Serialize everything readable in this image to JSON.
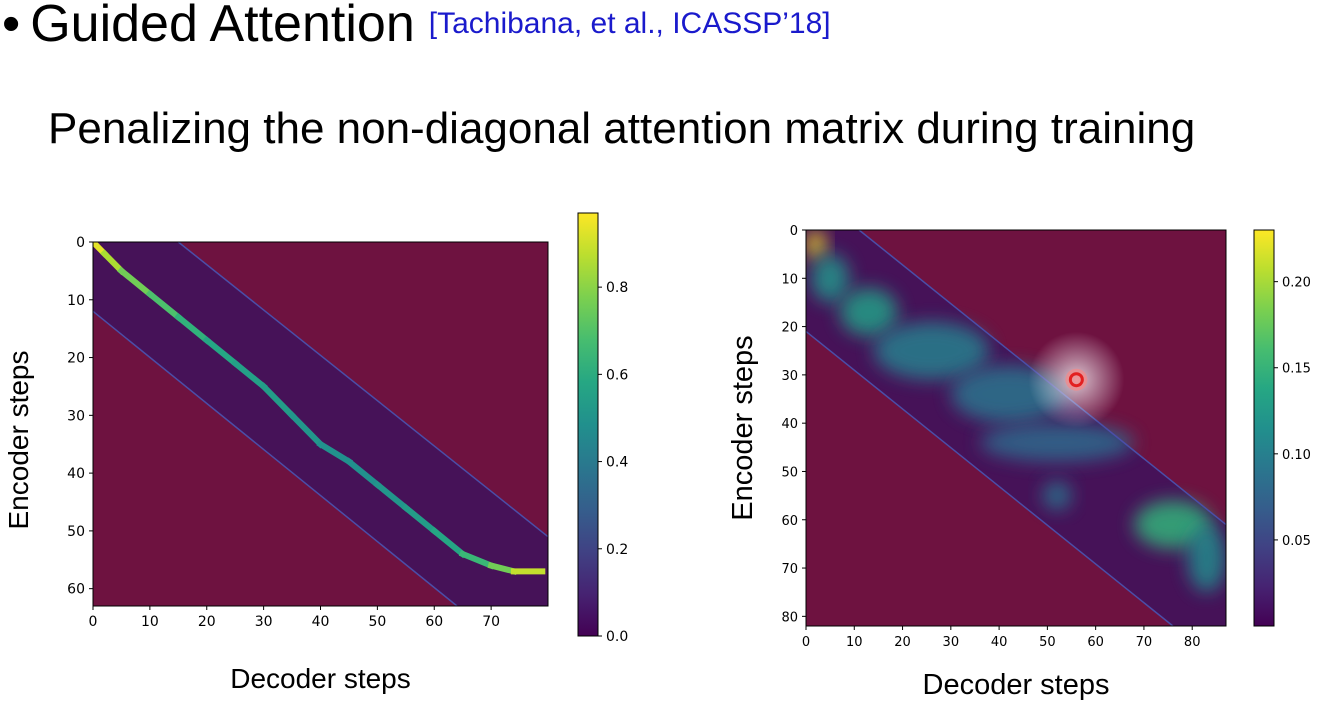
{
  "slide": {
    "bullet": "•",
    "title": "Guided Attention",
    "citation": "[Tachibana, et al., ICASSP’18]",
    "subtitle": "Penalizing the non-diagonal attention matrix during training"
  },
  "colors": {
    "penalty_region": "#6e1240",
    "band_background": "#461258",
    "citation": "#1a1acc",
    "marker": "#e32020"
  },
  "chart_data": [
    {
      "type": "heatmap",
      "title": "",
      "xlabel": "Decoder steps",
      "ylabel": "Encoder steps",
      "xlim": [
        0,
        80
      ],
      "ylim": [
        63,
        0
      ],
      "x_ticks": [
        "0",
        "10",
        "20",
        "30",
        "40",
        "50",
        "60",
        "70"
      ],
      "y_ticks": [
        "0",
        "10",
        "20",
        "30",
        "40",
        "50",
        "60"
      ],
      "colorbar": {
        "min": 0.0,
        "max": 0.97,
        "ticks": [
          "0.0",
          "0.2",
          "0.4",
          "0.6",
          "0.8"
        ],
        "colormap": "viridis"
      },
      "guided_band": {
        "upper": [
          [
            15,
            0
          ],
          [
            80,
            51
          ]
        ],
        "lower": [
          [
            0,
            12
          ],
          [
            64,
            63
          ]
        ]
      },
      "alignment_path": [
        [
          0,
          0
        ],
        [
          2,
          2
        ],
        [
          5,
          5
        ],
        [
          10,
          9
        ],
        [
          15,
          13
        ],
        [
          20,
          17
        ],
        [
          25,
          21
        ],
        [
          30,
          25
        ],
        [
          35,
          30
        ],
        [
          40,
          35
        ],
        [
          45,
          38
        ],
        [
          50,
          42
        ],
        [
          55,
          46
        ],
        [
          60,
          50
        ],
        [
          65,
          54
        ],
        [
          70,
          56
        ],
        [
          74,
          57
        ],
        [
          79,
          57
        ]
      ],
      "path_intensity": [
        0.97,
        0.9,
        0.8,
        0.72,
        0.66,
        0.6,
        0.55,
        0.55,
        0.52,
        0.5,
        0.48,
        0.5,
        0.52,
        0.55,
        0.6,
        0.7,
        0.82,
        0.95
      ]
    },
    {
      "type": "heatmap",
      "title": "",
      "xlabel": "Decoder steps",
      "ylabel": "Encoder steps",
      "xlim": [
        0,
        87
      ],
      "ylim": [
        82,
        0
      ],
      "x_ticks": [
        "0",
        "10",
        "20",
        "30",
        "40",
        "50",
        "60",
        "70",
        "80"
      ],
      "y_ticks": [
        "0",
        "10",
        "20",
        "30",
        "40",
        "50",
        "60",
        "70",
        "80"
      ],
      "colorbar": {
        "min": 0.0,
        "max": 0.23,
        "ticks": [
          "0.05",
          "0.10",
          "0.15",
          "0.20"
        ],
        "colormap": "viridis"
      },
      "guided_band": {
        "upper": [
          [
            11,
            0
          ],
          [
            87,
            61
          ]
        ],
        "lower": [
          [
            0,
            21
          ],
          [
            76,
            82
          ]
        ]
      },
      "attention_blobs": [
        {
          "x": 2,
          "y": 3,
          "sx": 2,
          "sy": 3,
          "v": 0.23
        },
        {
          "x": 5,
          "y": 10,
          "sx": 4,
          "sy": 5,
          "v": 0.12
        },
        {
          "x": 13,
          "y": 17,
          "sx": 6,
          "sy": 5,
          "v": 0.13
        },
        {
          "x": 26,
          "y": 25,
          "sx": 12,
          "sy": 6,
          "v": 0.1
        },
        {
          "x": 42,
          "y": 34,
          "sx": 12,
          "sy": 6,
          "v": 0.09
        },
        {
          "x": 52,
          "y": 44,
          "sx": 16,
          "sy": 4,
          "v": 0.08
        },
        {
          "x": 52,
          "y": 55,
          "sx": 3,
          "sy": 3,
          "v": 0.09
        },
        {
          "x": 76,
          "y": 61,
          "sx": 8,
          "sy": 5,
          "v": 0.15
        },
        {
          "x": 83,
          "y": 68,
          "sx": 4,
          "sy": 7,
          "v": 0.11
        }
      ],
      "marker": {
        "x": 56,
        "y": 31
      }
    }
  ]
}
